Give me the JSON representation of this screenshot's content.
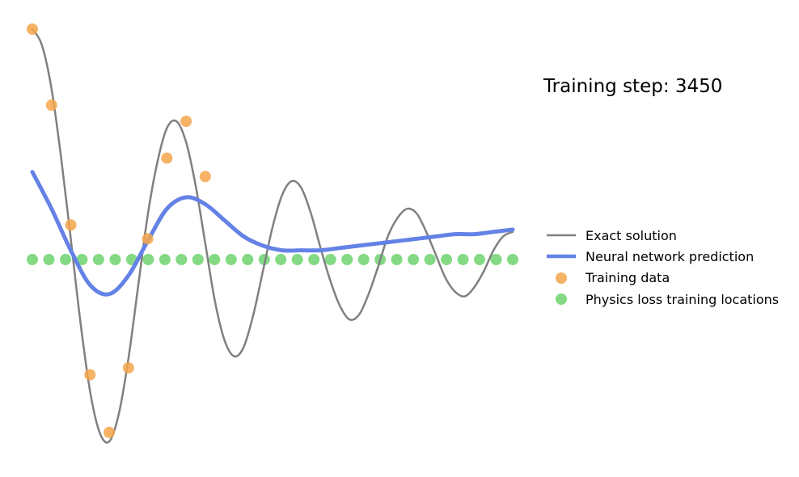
{
  "annotation": {
    "label": "Training step:",
    "value": "3450"
  },
  "colors": {
    "exact": "#808080",
    "prediction": "#6482e6",
    "training": "#f5a64a",
    "physics": "#6fd46f"
  },
  "chart_data": {
    "type": "line",
    "axes_visible": false,
    "grid": false,
    "legend_position": "right",
    "xlim": [
      0,
      1
    ],
    "ylim": [
      -1.0,
      1.2
    ],
    "series": [
      {
        "name": "Exact solution",
        "kind": "line",
        "color": "#808080",
        "x": [
          0,
          0.02,
          0.04,
          0.06,
          0.08,
          0.1,
          0.12,
          0.14,
          0.16,
          0.18,
          0.2,
          0.22,
          0.24,
          0.26,
          0.28,
          0.3,
          0.32,
          0.34,
          0.36,
          0.38,
          0.4,
          0.42,
          0.44,
          0.46,
          0.48,
          0.5,
          0.52,
          0.54,
          0.56,
          0.58,
          0.6,
          0.62,
          0.64,
          0.66,
          0.68,
          0.7,
          0.72,
          0.74,
          0.76,
          0.78,
          0.8,
          0.82,
          0.84,
          0.86,
          0.88,
          0.9,
          0.92,
          0.94,
          0.96,
          0.98,
          1.0
        ],
        "values": [
          1.0,
          0.93,
          0.74,
          0.44,
          0.09,
          -0.27,
          -0.57,
          -0.75,
          -0.79,
          -0.67,
          -0.43,
          -0.12,
          0.19,
          0.42,
          0.57,
          0.6,
          0.51,
          0.32,
          0.07,
          -0.18,
          -0.35,
          -0.42,
          -0.38,
          -0.24,
          -0.05,
          0.14,
          0.28,
          0.34,
          0.31,
          0.2,
          0.05,
          -0.09,
          -0.2,
          -0.26,
          -0.24,
          -0.15,
          -0.03,
          0.1,
          0.18,
          0.22,
          0.2,
          0.12,
          0.02,
          -0.08,
          -0.14,
          -0.16,
          -0.12,
          -0.05,
          0.04,
          0.1,
          0.12
        ]
      },
      {
        "name": "Neural network prediction",
        "kind": "line",
        "color": "#6482e6",
        "x": [
          0,
          0.04,
          0.08,
          0.12,
          0.16,
          0.2,
          0.24,
          0.28,
          0.32,
          0.36,
          0.4,
          0.44,
          0.48,
          0.52,
          0.56,
          0.6,
          0.64,
          0.68,
          0.72,
          0.76,
          0.8,
          0.84,
          0.88,
          0.92,
          0.96,
          1.0
        ],
        "values": [
          0.38,
          0.22,
          0.04,
          -0.11,
          -0.15,
          -0.07,
          0.08,
          0.22,
          0.27,
          0.24,
          0.17,
          0.1,
          0.06,
          0.04,
          0.04,
          0.04,
          0.05,
          0.06,
          0.07,
          0.08,
          0.09,
          0.1,
          0.11,
          0.11,
          0.12,
          0.13
        ]
      },
      {
        "name": "Training data",
        "kind": "scatter",
        "color": "#f5a64a",
        "x": [
          0.0,
          0.04,
          0.08,
          0.12,
          0.16,
          0.2,
          0.24,
          0.28,
          0.32,
          0.36
        ],
        "values": [
          1.0,
          0.67,
          0.15,
          -0.5,
          -0.75,
          -0.47,
          0.09,
          0.44,
          0.6,
          0.36
        ]
      },
      {
        "name": "Physics loss training locations",
        "kind": "scatter",
        "color": "#6fd46f",
        "x": [
          0.0,
          0.0345,
          0.069,
          0.1034,
          0.1379,
          0.1724,
          0.2069,
          0.2414,
          0.2759,
          0.3103,
          0.3448,
          0.3793,
          0.4138,
          0.4483,
          0.4828,
          0.5172,
          0.5517,
          0.5862,
          0.6207,
          0.6552,
          0.6897,
          0.7241,
          0.7586,
          0.7931,
          0.8276,
          0.8621,
          0.8966,
          0.931,
          0.9655,
          1.0
        ],
        "values": [
          0,
          0,
          0,
          0,
          0,
          0,
          0,
          0,
          0,
          0,
          0,
          0,
          0,
          0,
          0,
          0,
          0,
          0,
          0,
          0,
          0,
          0,
          0,
          0,
          0,
          0,
          0,
          0,
          0,
          0
        ]
      }
    ]
  }
}
